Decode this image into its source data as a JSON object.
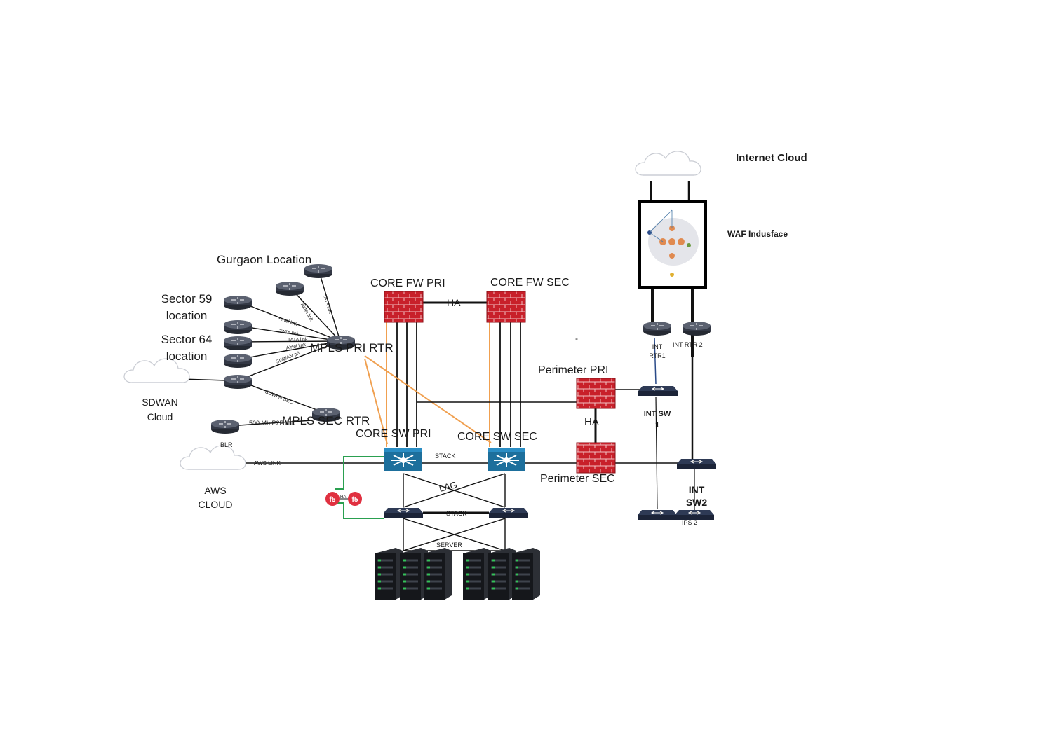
{
  "labels": {
    "internet_cloud": "Internet Cloud",
    "waf": "WAF Indusface",
    "gurgaon": "Gurgaon Location",
    "sector59_line1": "Sector 59",
    "sector59_line2": "location",
    "sector64_line1": "Sector 64",
    "sector64_line2": "location",
    "sdwan_line1": "SDWAN",
    "sdwan_line2": "Cloud",
    "aws_line1": "AWS",
    "aws_line2": "CLOUD",
    "blr": "BLR",
    "mpls_pri": "MPLS PRI RTR",
    "mpls_sec": "MPLS SEC RTR",
    "core_fw_pri": "CORE FW PRI",
    "core_fw_sec": "CORE FW SEC",
    "core_sw_pri": "CORE SW PRI",
    "core_sw_sec": "CORE SW SEC",
    "perimeter_pri": "Perimeter PRI",
    "perimeter_sec": "Perimeter SEC",
    "ha_core": "HA",
    "ha_perimeter": "HA",
    "stack_core": "STACK",
    "stack_server": "STACK",
    "lag": "LAG",
    "server": "SERVER",
    "int_rtr1_line1": "INT",
    "int_rtr1_line2": "RTR1",
    "int_rtr2": "INT RTR 2",
    "int_sw1_line1": "INT SW",
    "int_sw1_line2": "1",
    "int_sw2_line1": "INT",
    "int_sw2_line2": "SW2",
    "ips2": "IPS 2",
    "dash": "-",
    "f5_ha": "HA"
  },
  "link_labels": {
    "airtel_link_top": "Airtel link",
    "tata_link_top": "TATA link",
    "airtel_link_s59": "Airtel link",
    "tata_link_1": "TATA link",
    "tata_link_2": "TATA link",
    "airtel_link_s64": "Airtel link",
    "sdwan_pri": "SDWAN pri",
    "sdwan_sec": "SDWAN SEC",
    "blr_p2p": "500 Mb P2P link",
    "aws_link": "AWS LINK"
  },
  "colors": {
    "firewall_red": "#c8202a",
    "switch_blue": "#1d6f9c",
    "router_dark": "#3a3f4c",
    "orange_link": "#f0a050",
    "green_link": "#2aa050"
  }
}
